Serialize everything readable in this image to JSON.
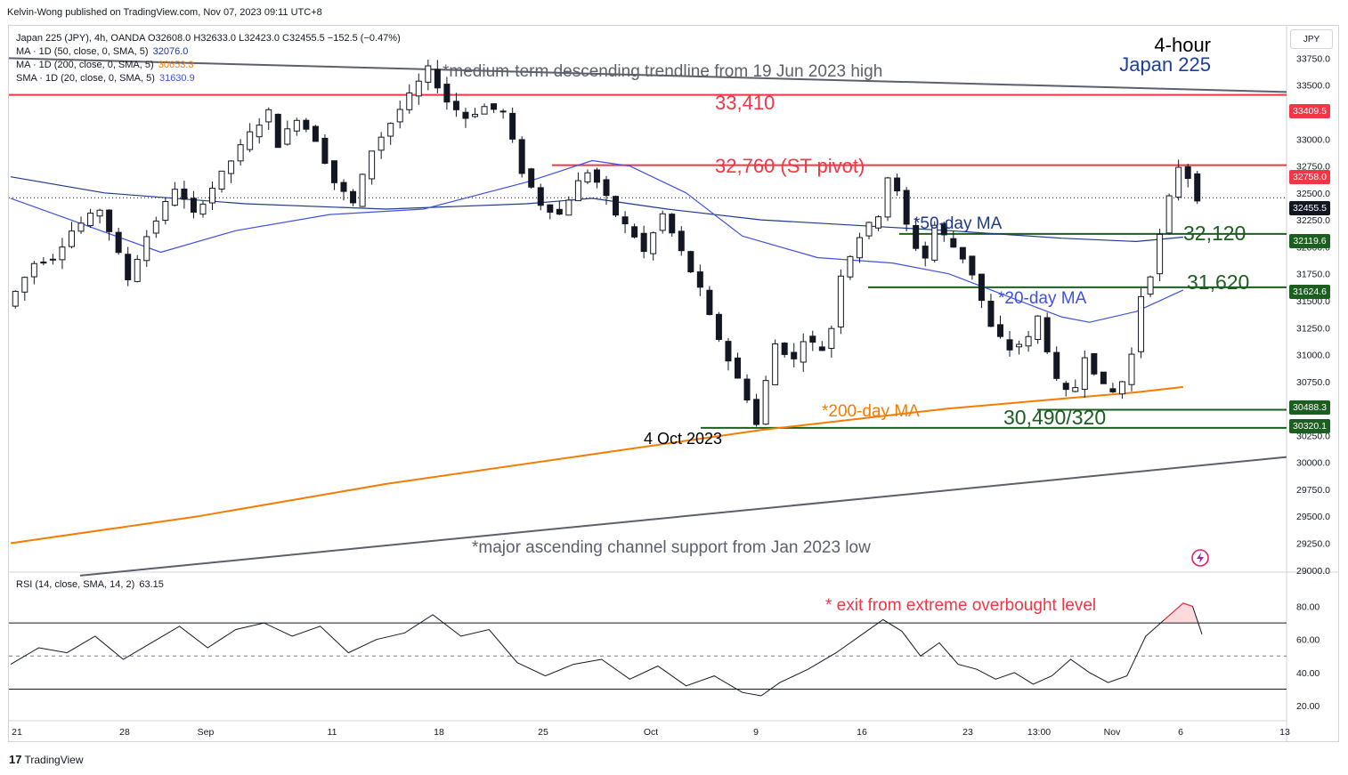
{
  "publisher": "Kelvin-Wong published on TradingView.com, Nov 07, 2023 09:11 UTC+8",
  "currency": "JPY",
  "footer_brand": "TradingView",
  "legend": {
    "symbol_line": "Japan 225 (JPY), 4h, OANDA  O32608.0  H32633.0  L32423.0  C32455.5  −152.5 (−0.47%)",
    "ma50_label": "MA · 1D (50, close, 0, SMA, 5)",
    "ma50_value": "32076.0",
    "ma200_label": "MA · 1D (200, close, 0, SMA, 5)",
    "ma200_value": "30653.3",
    "sma20_label": "SMA · 1D (20, close, 0, SMA, 5)",
    "sma20_value": "31630.9",
    "rsi_label": "RSI (14, close, SMA, 14, 2)",
    "rsi_value": "63.15"
  },
  "timeframe": "4-hour",
  "instrument": "Japan 225",
  "colors": {
    "resistance": "#f23645",
    "support": "#1b5e20",
    "ma50": "#1e3a8a",
    "sma20": "#3f51e0",
    "ma200": "#f57c00",
    "trendline": "#5d606b",
    "last_price": "#131722"
  },
  "annotations": {
    "trend_desc": "*medium-term descending trendline from 19 Jun 2023 high",
    "channel_support": "*major ascending channel support from Jan 2023 low",
    "r1": "33,410",
    "pivot": "32,760 (ST pivot)",
    "s1": "32,120",
    "s2": "31,620",
    "s3": "30,490/320",
    "ma50_note": "*50-day MA",
    "sma20_note": "*20-day MA",
    "ma200_note": "*200-day MA",
    "low_date": "4 Oct 2023",
    "rsi_note": "* exit from extreme overbought level"
  },
  "price_tags": {
    "r1": "33409.5",
    "pivot": "32758.0",
    "last": "32455.5",
    "s1": "32119.6",
    "s2": "31624.6",
    "s3a": "30488.3",
    "s3b": "30320.1"
  },
  "chart_data": {
    "type": "line",
    "title": "Japan 225 (JPY), 4h, OANDA",
    "price_axis_ticks": [
      "33750.0",
      "33500.0",
      "33250.0",
      "33000.0",
      "32750.0",
      "32500.0",
      "32250.0",
      "32000.0",
      "31750.0",
      "31500.0",
      "31250.0",
      "31000.0",
      "30750.0",
      "30500.0",
      "30250.0",
      "30000.0",
      "29750.0",
      "29500.0",
      "29250.0",
      "29000.0"
    ],
    "rsi_axis_ticks": [
      "80.00",
      "60.00",
      "40.00",
      "20.00"
    ],
    "x_ticks": [
      "21",
      "28",
      "Sep",
      "11",
      "18",
      "25",
      "Oct",
      "9",
      "16",
      "23",
      "13:00",
      "Nov",
      "6",
      "13"
    ],
    "ylim": [
      28990,
      33960
    ],
    "rsi_ylim": [
      12,
      98
    ],
    "levels": [
      {
        "name": "33,410",
        "value": 33409.5
      },
      {
        "name": "32,760 (ST pivot)",
        "value": 32758.0
      },
      {
        "name": "32,120",
        "value": 32119.6
      },
      {
        "name": "31,620",
        "value": 31624.6
      },
      {
        "name": "30,490/320",
        "value": 30488.3
      },
      {
        "name": "30,490/320",
        "value": 30320.1
      }
    ],
    "last_price": 32455.5,
    "rsi_bands": [
      70,
      50,
      30
    ],
    "price_path": [
      [
        0,
        31450
      ],
      [
        3,
        31850
      ],
      [
        5,
        31900
      ],
      [
        7,
        32150
      ],
      [
        10,
        32350
      ],
      [
        11,
        32150
      ],
      [
        13,
        31700
      ],
      [
        15,
        32100
      ],
      [
        17,
        32400
      ],
      [
        18,
        32550
      ],
      [
        20,
        32300
      ],
      [
        22,
        32550
      ],
      [
        24,
        32800
      ],
      [
        26,
        33050
      ],
      [
        28,
        33250
      ],
      [
        29,
        32950
      ],
      [
        31,
        33200
      ],
      [
        33,
        33000
      ],
      [
        35,
        32600
      ],
      [
        37,
        32400
      ],
      [
        39,
        32900
      ],
      [
        41,
        33150
      ],
      [
        43,
        33400
      ],
      [
        45,
        33650
      ],
      [
        47,
        33350
      ],
      [
        49,
        33200
      ],
      [
        51,
        33300
      ],
      [
        53,
        33250
      ],
      [
        55,
        32700
      ],
      [
        57,
        32400
      ],
      [
        59,
        32300
      ],
      [
        61,
        32600
      ],
      [
        62,
        32700
      ],
      [
        63,
        32600
      ],
      [
        65,
        32300
      ],
      [
        67,
        32100
      ],
      [
        68,
        31950
      ],
      [
        70,
        32300
      ],
      [
        72,
        31950
      ],
      [
        74,
        31600
      ],
      [
        75,
        31350
      ],
      [
        77,
        30950
      ],
      [
        79,
        30600
      ],
      [
        80,
        30350
      ],
      [
        81,
        30750
      ],
      [
        82,
        31100
      ],
      [
        84,
        30950
      ],
      [
        85,
        31150
      ],
      [
        87,
        31050
      ],
      [
        88,
        31250
      ],
      [
        89,
        31750
      ],
      [
        91,
        32100
      ],
      [
        93,
        32300
      ],
      [
        94,
        32650
      ],
      [
        95,
        32500
      ],
      [
        96,
        32200
      ],
      [
        97,
        32000
      ],
      [
        98,
        31900
      ],
      [
        99,
        32200
      ],
      [
        101,
        32000
      ],
      [
        102,
        31900
      ],
      [
        103,
        31750
      ],
      [
        104,
        31500
      ],
      [
        105,
        31250
      ],
      [
        107,
        31050
      ],
      [
        109,
        31150
      ],
      [
        110,
        31350
      ],
      [
        111,
        31050
      ],
      [
        112,
        30750
      ],
      [
        113,
        30650
      ],
      [
        114,
        30700
      ],
      [
        115,
        31000
      ],
      [
        117,
        30700
      ],
      [
        118,
        30650
      ],
      [
        119,
        30750
      ],
      [
        120,
        31000
      ],
      [
        121,
        31550
      ],
      [
        122,
        31750
      ],
      [
        123,
        32100
      ],
      [
        124,
        32450
      ],
      [
        125,
        32750
      ],
      [
        126,
        32650
      ],
      [
        127,
        32455.5
      ]
    ],
    "ma50_path": [
      [
        0,
        32650
      ],
      [
        10,
        32500
      ],
      [
        25,
        32400
      ],
      [
        40,
        32350
      ],
      [
        55,
        32400
      ],
      [
        62,
        32450
      ],
      [
        70,
        32350
      ],
      [
        80,
        32250
      ],
      [
        90,
        32200
      ],
      [
        100,
        32150
      ],
      [
        112,
        32080
      ],
      [
        120,
        32050
      ],
      [
        125,
        32090
      ]
    ],
    "sma20_path": [
      [
        0,
        32450
      ],
      [
        8,
        32200
      ],
      [
        16,
        31950
      ],
      [
        24,
        32150
      ],
      [
        34,
        32300
      ],
      [
        44,
        32350
      ],
      [
        55,
        32600
      ],
      [
        62,
        32800
      ],
      [
        66,
        32750
      ],
      [
        72,
        32500
      ],
      [
        78,
        32100
      ],
      [
        86,
        31900
      ],
      [
        94,
        31850
      ],
      [
        100,
        31750
      ],
      [
        106,
        31550
      ],
      [
        112,
        31350
      ],
      [
        115,
        31300
      ],
      [
        120,
        31400
      ],
      [
        125,
        31600
      ]
    ],
    "ma200_path": [
      [
        0,
        29250
      ],
      [
        20,
        29500
      ],
      [
        40,
        29800
      ],
      [
        60,
        30050
      ],
      [
        80,
        30300
      ],
      [
        100,
        30500
      ],
      [
        120,
        30650
      ],
      [
        125,
        30700
      ]
    ],
    "trend_desc_path": [
      [
        0,
        33750
      ],
      [
        127,
        33420
      ]
    ],
    "channel_path": [
      [
        0,
        28950
      ],
      [
        127,
        30000
      ]
    ],
    "rsi_path": [
      [
        0,
        45
      ],
      [
        3,
        55
      ],
      [
        6,
        52
      ],
      [
        9,
        62
      ],
      [
        12,
        48
      ],
      [
        15,
        58
      ],
      [
        18,
        68
      ],
      [
        21,
        55
      ],
      [
        24,
        66
      ],
      [
        27,
        70
      ],
      [
        30,
        62
      ],
      [
        33,
        68
      ],
      [
        36,
        52
      ],
      [
        39,
        60
      ],
      [
        42,
        64
      ],
      [
        45,
        75
      ],
      [
        48,
        62
      ],
      [
        51,
        66
      ],
      [
        54,
        46
      ],
      [
        57,
        38
      ],
      [
        60,
        45
      ],
      [
        63,
        48
      ],
      [
        66,
        36
      ],
      [
        69,
        44
      ],
      [
        72,
        32
      ],
      [
        75,
        38
      ],
      [
        78,
        28
      ],
      [
        80,
        26
      ],
      [
        82,
        34
      ],
      [
        85,
        42
      ],
      [
        88,
        52
      ],
      [
        91,
        64
      ],
      [
        93,
        72
      ],
      [
        95,
        65
      ],
      [
        97,
        50
      ],
      [
        99,
        58
      ],
      [
        101,
        45
      ],
      [
        103,
        42
      ],
      [
        105,
        36
      ],
      [
        107,
        40
      ],
      [
        109,
        33
      ],
      [
        111,
        38
      ],
      [
        113,
        48
      ],
      [
        115,
        40
      ],
      [
        117,
        34
      ],
      [
        119,
        38
      ],
      [
        121,
        62
      ],
      [
        123,
        72
      ],
      [
        125,
        82
      ],
      [
        126,
        80
      ],
      [
        127,
        63.15
      ]
    ]
  }
}
